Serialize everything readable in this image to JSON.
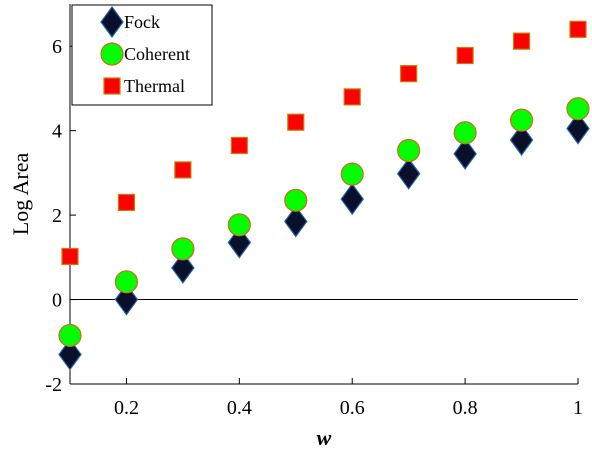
{
  "chart_data": {
    "type": "scatter",
    "xlabel": "w",
    "ylabel": "Log Area",
    "xlim": [
      0.1,
      1.0
    ],
    "ylim": [
      -2,
      7
    ],
    "xticks": [
      0.2,
      0.4,
      0.6,
      0.8,
      1.0
    ],
    "xtick_labels": [
      "0.2",
      "0.4",
      "0.6",
      "0.8",
      "1"
    ],
    "yticks": [
      -2,
      0,
      2,
      4,
      6
    ],
    "ytick_labels": [
      "-2",
      "0",
      "2",
      "4",
      "6"
    ],
    "reference_line": 0,
    "grid": false,
    "legend_position": "top-left",
    "series": [
      {
        "name": "Fock",
        "marker": "diamond",
        "color": "#0a0f2a",
        "edge_color": "#1f5fa8",
        "x": [
          0.1,
          0.2,
          0.3,
          0.4,
          0.5,
          0.6,
          0.7,
          0.8,
          0.9,
          1.0
        ],
        "y": [
          -1.3,
          0.0,
          0.75,
          1.35,
          1.85,
          2.38,
          2.98,
          3.45,
          3.78,
          4.05
        ]
      },
      {
        "name": "Coherent",
        "marker": "circle",
        "color": "#00ff00",
        "edge_color": "#d2691e",
        "x": [
          0.1,
          0.2,
          0.3,
          0.4,
          0.5,
          0.6,
          0.7,
          0.8,
          0.9,
          1.0
        ],
        "y": [
          -0.85,
          0.42,
          1.2,
          1.77,
          2.35,
          2.97,
          3.53,
          3.95,
          4.25,
          4.52
        ]
      },
      {
        "name": "Thermal",
        "marker": "square",
        "color": "#ff0000",
        "edge_color": "#cc7a00",
        "x": [
          0.1,
          0.2,
          0.3,
          0.4,
          0.5,
          0.6,
          0.7,
          0.8,
          0.9,
          1.0
        ],
        "y": [
          1.02,
          2.3,
          3.07,
          3.65,
          4.2,
          4.8,
          5.35,
          5.78,
          6.12,
          6.4
        ]
      }
    ]
  }
}
